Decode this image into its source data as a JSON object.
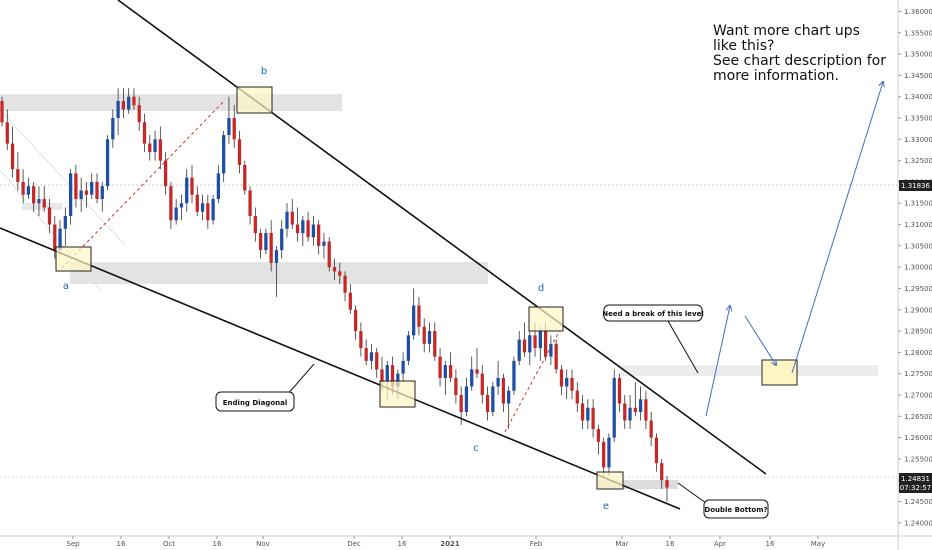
{
  "chart_data": {
    "type": "candlestick",
    "y_ticks": [
      "1.36000",
      "1.35500",
      "1.35000",
      "1.34500",
      "1.34000",
      "1.33500",
      "1.33000",
      "1.32500",
      "1.32000",
      "1.31500",
      "1.31000",
      "1.30500",
      "1.30000",
      "1.29500",
      "1.29000",
      "1.28500",
      "1.28000",
      "1.27500",
      "1.27000",
      "1.26500",
      "1.26000",
      "1.25500",
      "1.25000",
      "1.24500",
      "1.24000"
    ],
    "ylim": [
      1.2369,
      1.3627
    ],
    "x_ticks": [
      "Sep",
      "16",
      "Oct",
      "16",
      "Nov",
      "Dec",
      "16",
      "2021",
      "Feb",
      "Mar",
      "16",
      "Apr",
      "16",
      "May"
    ],
    "current_price": "1.24831",
    "countdown": "07:32:57",
    "marked_price": "1.31836",
    "candles": [
      {
        "o": 1.339,
        "h": 1.34,
        "l": 1.333,
        "c": 1.334
      },
      {
        "o": 1.334,
        "h": 1.337,
        "l": 1.3275,
        "c": 1.329
      },
      {
        "o": 1.329,
        "h": 1.333,
        "l": 1.321,
        "c": 1.323
      },
      {
        "o": 1.323,
        "h": 1.327,
        "l": 1.318,
        "c": 1.32
      },
      {
        "o": 1.32,
        "h": 1.323,
        "l": 1.315,
        "c": 1.317
      },
      {
        "o": 1.317,
        "h": 1.321,
        "l": 1.316,
        "c": 1.319
      },
      {
        "o": 1.319,
        "h": 1.32,
        "l": 1.313,
        "c": 1.315
      },
      {
        "o": 1.315,
        "h": 1.319,
        "l": 1.312,
        "c": 1.316
      },
      {
        "o": 1.316,
        "h": 1.319,
        "l": 1.313,
        "c": 1.314
      },
      {
        "o": 1.314,
        "h": 1.316,
        "l": 1.308,
        "c": 1.31
      },
      {
        "o": 1.31,
        "h": 1.312,
        "l": 1.302,
        "c": 1.304
      },
      {
        "o": 1.304,
        "h": 1.311,
        "l": 1.303,
        "c": 1.309
      },
      {
        "o": 1.309,
        "h": 1.314,
        "l": 1.305,
        "c": 1.312
      },
      {
        "o": 1.312,
        "h": 1.323,
        "l": 1.31,
        "c": 1.322
      },
      {
        "o": 1.322,
        "h": 1.324,
        "l": 1.314,
        "c": 1.316
      },
      {
        "o": 1.316,
        "h": 1.321,
        "l": 1.313,
        "c": 1.318
      },
      {
        "o": 1.318,
        "h": 1.32,
        "l": 1.314,
        "c": 1.317
      },
      {
        "o": 1.317,
        "h": 1.322,
        "l": 1.316,
        "c": 1.32
      },
      {
        "o": 1.32,
        "h": 1.322,
        "l": 1.315,
        "c": 1.316
      },
      {
        "o": 1.316,
        "h": 1.32,
        "l": 1.313,
        "c": 1.319
      },
      {
        "o": 1.319,
        "h": 1.331,
        "l": 1.318,
        "c": 1.33
      },
      {
        "o": 1.33,
        "h": 1.337,
        "l": 1.328,
        "c": 1.335
      },
      {
        "o": 1.335,
        "h": 1.342,
        "l": 1.331,
        "c": 1.339
      },
      {
        "o": 1.339,
        "h": 1.342,
        "l": 1.335,
        "c": 1.337
      },
      {
        "o": 1.337,
        "h": 1.342,
        "l": 1.336,
        "c": 1.34
      },
      {
        "o": 1.34,
        "h": 1.342,
        "l": 1.337,
        "c": 1.338
      },
      {
        "o": 1.338,
        "h": 1.34,
        "l": 1.332,
        "c": 1.334
      },
      {
        "o": 1.334,
        "h": 1.336,
        "l": 1.327,
        "c": 1.329
      },
      {
        "o": 1.329,
        "h": 1.331,
        "l": 1.325,
        "c": 1.327
      },
      {
        "o": 1.327,
        "h": 1.332,
        "l": 1.325,
        "c": 1.33
      },
      {
        "o": 1.33,
        "h": 1.333,
        "l": 1.323,
        "c": 1.325
      },
      {
        "o": 1.325,
        "h": 1.327,
        "l": 1.317,
        "c": 1.319
      },
      {
        "o": 1.319,
        "h": 1.32,
        "l": 1.309,
        "c": 1.311
      },
      {
        "o": 1.311,
        "h": 1.316,
        "l": 1.31,
        "c": 1.314
      },
      {
        "o": 1.314,
        "h": 1.317,
        "l": 1.311,
        "c": 1.315
      },
      {
        "o": 1.315,
        "h": 1.323,
        "l": 1.313,
        "c": 1.321
      },
      {
        "o": 1.321,
        "h": 1.324,
        "l": 1.315,
        "c": 1.317
      },
      {
        "o": 1.317,
        "h": 1.319,
        "l": 1.312,
        "c": 1.313
      },
      {
        "o": 1.313,
        "h": 1.317,
        "l": 1.311,
        "c": 1.315
      },
      {
        "o": 1.315,
        "h": 1.317,
        "l": 1.309,
        "c": 1.311
      },
      {
        "o": 1.311,
        "h": 1.317,
        "l": 1.31,
        "c": 1.316
      },
      {
        "o": 1.316,
        "h": 1.324,
        "l": 1.315,
        "c": 1.322
      },
      {
        "o": 1.322,
        "h": 1.332,
        "l": 1.32,
        "c": 1.331
      },
      {
        "o": 1.331,
        "h": 1.34,
        "l": 1.329,
        "c": 1.335
      },
      {
        "o": 1.335,
        "h": 1.338,
        "l": 1.328,
        "c": 1.33
      },
      {
        "o": 1.33,
        "h": 1.332,
        "l": 1.322,
        "c": 1.324
      },
      {
        "o": 1.324,
        "h": 1.325,
        "l": 1.317,
        "c": 1.318
      },
      {
        "o": 1.318,
        "h": 1.319,
        "l": 1.31,
        "c": 1.312
      },
      {
        "o": 1.312,
        "h": 1.314,
        "l": 1.306,
        "c": 1.308
      },
      {
        "o": 1.308,
        "h": 1.309,
        "l": 1.302,
        "c": 1.304
      },
      {
        "o": 1.304,
        "h": 1.309,
        "l": 1.303,
        "c": 1.308
      },
      {
        "o": 1.308,
        "h": 1.311,
        "l": 1.299,
        "c": 1.301
      },
      {
        "o": 1.301,
        "h": 1.305,
        "l": 1.293,
        "c": 1.304
      },
      {
        "o": 1.304,
        "h": 1.311,
        "l": 1.302,
        "c": 1.309
      },
      {
        "o": 1.309,
        "h": 1.315,
        "l": 1.307,
        "c": 1.313
      },
      {
        "o": 1.313,
        "h": 1.316,
        "l": 1.309,
        "c": 1.31
      },
      {
        "o": 1.31,
        "h": 1.314,
        "l": 1.306,
        "c": 1.308
      },
      {
        "o": 1.308,
        "h": 1.312,
        "l": 1.305,
        "c": 1.311
      },
      {
        "o": 1.311,
        "h": 1.313,
        "l": 1.306,
        "c": 1.307
      },
      {
        "o": 1.307,
        "h": 1.312,
        "l": 1.305,
        "c": 1.31
      },
      {
        "o": 1.31,
        "h": 1.311,
        "l": 1.303,
        "c": 1.305
      },
      {
        "o": 1.305,
        "h": 1.308,
        "l": 1.302,
        "c": 1.306
      },
      {
        "o": 1.306,
        "h": 1.307,
        "l": 1.299,
        "c": 1.3
      },
      {
        "o": 1.3,
        "h": 1.302,
        "l": 1.297,
        "c": 1.299
      },
      {
        "o": 1.299,
        "h": 1.301,
        "l": 1.296,
        "c": 1.298
      },
      {
        "o": 1.298,
        "h": 1.299,
        "l": 1.292,
        "c": 1.294
      },
      {
        "o": 1.294,
        "h": 1.296,
        "l": 1.289,
        "c": 1.29
      },
      {
        "o": 1.29,
        "h": 1.291,
        "l": 1.283,
        "c": 1.285
      },
      {
        "o": 1.285,
        "h": 1.287,
        "l": 1.279,
        "c": 1.281
      },
      {
        "o": 1.281,
        "h": 1.283,
        "l": 1.277,
        "c": 1.278
      },
      {
        "o": 1.278,
        "h": 1.282,
        "l": 1.276,
        "c": 1.28
      },
      {
        "o": 1.28,
        "h": 1.281,
        "l": 1.274,
        "c": 1.276
      },
      {
        "o": 1.276,
        "h": 1.279,
        "l": 1.271,
        "c": 1.273
      },
      {
        "o": 1.273,
        "h": 1.278,
        "l": 1.269,
        "c": 1.277
      },
      {
        "o": 1.277,
        "h": 1.279,
        "l": 1.27,
        "c": 1.272
      },
      {
        "o": 1.272,
        "h": 1.276,
        "l": 1.269,
        "c": 1.275
      },
      {
        "o": 1.275,
        "h": 1.28,
        "l": 1.273,
        "c": 1.278
      },
      {
        "o": 1.278,
        "h": 1.285,
        "l": 1.277,
        "c": 1.284
      },
      {
        "o": 1.284,
        "h": 1.295,
        "l": 1.283,
        "c": 1.291
      },
      {
        "o": 1.291,
        "h": 1.293,
        "l": 1.284,
        "c": 1.286
      },
      {
        "o": 1.286,
        "h": 1.288,
        "l": 1.28,
        "c": 1.282
      },
      {
        "o": 1.282,
        "h": 1.287,
        "l": 1.28,
        "c": 1.285
      },
      {
        "o": 1.285,
        "h": 1.287,
        "l": 1.278,
        "c": 1.279
      },
      {
        "o": 1.279,
        "h": 1.281,
        "l": 1.272,
        "c": 1.274
      },
      {
        "o": 1.274,
        "h": 1.278,
        "l": 1.27,
        "c": 1.277
      },
      {
        "o": 1.277,
        "h": 1.28,
        "l": 1.273,
        "c": 1.274
      },
      {
        "o": 1.274,
        "h": 1.276,
        "l": 1.268,
        "c": 1.27
      },
      {
        "o": 1.27,
        "h": 1.272,
        "l": 1.263,
        "c": 1.266
      },
      {
        "o": 1.266,
        "h": 1.274,
        "l": 1.265,
        "c": 1.272
      },
      {
        "o": 1.272,
        "h": 1.279,
        "l": 1.271,
        "c": 1.276
      },
      {
        "o": 1.276,
        "h": 1.281,
        "l": 1.274,
        "c": 1.275
      },
      {
        "o": 1.275,
        "h": 1.277,
        "l": 1.268,
        "c": 1.27
      },
      {
        "o": 1.27,
        "h": 1.272,
        "l": 1.264,
        "c": 1.266
      },
      {
        "o": 1.266,
        "h": 1.273,
        "l": 1.265,
        "c": 1.272
      },
      {
        "o": 1.272,
        "h": 1.278,
        "l": 1.27,
        "c": 1.274
      },
      {
        "o": 1.274,
        "h": 1.275,
        "l": 1.266,
        "c": 1.268
      },
      {
        "o": 1.268,
        "h": 1.272,
        "l": 1.262,
        "c": 1.271
      },
      {
        "o": 1.271,
        "h": 1.279,
        "l": 1.27,
        "c": 1.278
      },
      {
        "o": 1.278,
        "h": 1.285,
        "l": 1.277,
        "c": 1.283
      },
      {
        "o": 1.283,
        "h": 1.287,
        "l": 1.279,
        "c": 1.28
      },
      {
        "o": 1.28,
        "h": 1.285,
        "l": 1.277,
        "c": 1.284
      },
      {
        "o": 1.284,
        "h": 1.287,
        "l": 1.279,
        "c": 1.281
      },
      {
        "o": 1.281,
        "h": 1.286,
        "l": 1.278,
        "c": 1.285
      },
      {
        "o": 1.285,
        "h": 1.287,
        "l": 1.278,
        "c": 1.279
      },
      {
        "o": 1.279,
        "h": 1.284,
        "l": 1.277,
        "c": 1.282
      },
      {
        "o": 1.282,
        "h": 1.283,
        "l": 1.275,
        "c": 1.276
      },
      {
        "o": 1.276,
        "h": 1.277,
        "l": 1.27,
        "c": 1.272
      },
      {
        "o": 1.272,
        "h": 1.276,
        "l": 1.269,
        "c": 1.274
      },
      {
        "o": 1.274,
        "h": 1.276,
        "l": 1.269,
        "c": 1.271
      },
      {
        "o": 1.271,
        "h": 1.273,
        "l": 1.266,
        "c": 1.268
      },
      {
        "o": 1.268,
        "h": 1.27,
        "l": 1.262,
        "c": 1.264
      },
      {
        "o": 1.264,
        "h": 1.269,
        "l": 1.262,
        "c": 1.267
      },
      {
        "o": 1.267,
        "h": 1.269,
        "l": 1.26,
        "c": 1.262
      },
      {
        "o": 1.262,
        "h": 1.263,
        "l": 1.256,
        "c": 1.259
      },
      {
        "o": 1.259,
        "h": 1.26,
        "l": 1.251,
        "c": 1.253
      },
      {
        "o": 1.253,
        "h": 1.261,
        "l": 1.251,
        "c": 1.26
      },
      {
        "o": 1.26,
        "h": 1.276,
        "l": 1.259,
        "c": 1.274
      },
      {
        "o": 1.274,
        "h": 1.275,
        "l": 1.266,
        "c": 1.268
      },
      {
        "o": 1.268,
        "h": 1.27,
        "l": 1.262,
        "c": 1.264
      },
      {
        "o": 1.264,
        "h": 1.27,
        "l": 1.262,
        "c": 1.267
      },
      {
        "o": 1.267,
        "h": 1.273,
        "l": 1.265,
        "c": 1.266
      },
      {
        "o": 1.266,
        "h": 1.272,
        "l": 1.264,
        "c": 1.269
      },
      {
        "o": 1.269,
        "h": 1.271,
        "l": 1.262,
        "c": 1.264
      },
      {
        "o": 1.264,
        "h": 1.266,
        "l": 1.258,
        "c": 1.26
      },
      {
        "o": 1.26,
        "h": 1.261,
        "l": 1.252,
        "c": 1.254
      },
      {
        "o": 1.254,
        "h": 1.255,
        "l": 1.248,
        "c": 1.25
      },
      {
        "o": 1.25,
        "h": 1.251,
        "l": 1.245,
        "c": 1.2483
      }
    ]
  },
  "annotations": {
    "promo_lines": [
      "Want more chart ups",
      "like this?",
      "See chart description for",
      "more information."
    ],
    "wave_a": "a",
    "wave_b": "b",
    "wave_c": "c",
    "wave_d": "d",
    "wave_e": "e",
    "ending_diagonal": "Ending Diagonal",
    "break_level": "Need a break of this level",
    "double_bottom": "Double Bottom?"
  },
  "colors": {
    "bull": "#1e4fa3",
    "bear": "#c62828",
    "highlight_box": "#fff5c2",
    "zone": "#e3e3e3",
    "arrow": "#3b6fc4"
  }
}
